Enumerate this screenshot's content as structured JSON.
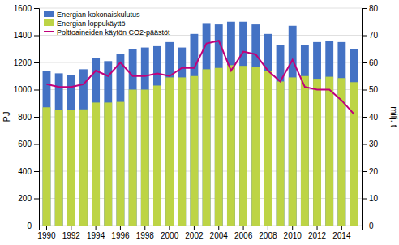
{
  "chart_data": {
    "type": "bar",
    "categories": [
      "1990",
      null,
      "1992",
      null,
      "1994",
      null,
      "1996",
      null,
      "1998",
      null,
      "2000",
      null,
      "2002",
      null,
      "2004",
      null,
      "2006",
      null,
      "2008",
      null,
      "2010",
      null,
      "2012",
      null,
      "2014",
      null
    ],
    "series": [
      {
        "name": "Energian kokonaiskulutus",
        "type": "bar",
        "color": "#4472c4",
        "values": [
          1140,
          1120,
          1110,
          1150,
          1230,
          1210,
          1260,
          1300,
          1310,
          1320,
          1350,
          1310,
          1410,
          1490,
          1480,
          1500,
          1500,
          1480,
          1410,
          1330,
          1470,
          1330,
          1350,
          1360,
          1350,
          1300
        ]
      },
      {
        "name": "Energian loppukäyttö",
        "type": "bar",
        "color": "#bdd445",
        "values": [
          870,
          850,
          850,
          855,
          905,
          905,
          910,
          1000,
          1000,
          1030,
          1090,
          1090,
          1100,
          1150,
          1160,
          1180,
          1175,
          1165,
          1140,
          1060,
          1090,
          1100,
          1080,
          1095,
          1085,
          1055
        ]
      },
      {
        "name": "Polttoaineiden käytön CO2-päästöt",
        "type": "line",
        "axis": "y2",
        "color": "#c0007a",
        "values": [
          52,
          51,
          51,
          52,
          57,
          55,
          60,
          55,
          55,
          56,
          55,
          58,
          58,
          67,
          68,
          57,
          64,
          63,
          57,
          53,
          61,
          51,
          50,
          50,
          46,
          41
        ]
      }
    ],
    "y_label": "PJ",
    "y2_label": "milj. t",
    "ylim": [
      0,
      1600
    ],
    "yticks": [
      0,
      200,
      400,
      600,
      800,
      1000,
      1200,
      1400,
      1600
    ],
    "y2lim": [
      0,
      80
    ],
    "y2ticks": [
      0,
      10,
      20,
      30,
      40,
      50,
      60,
      70,
      80
    ],
    "stacked": false,
    "grid": true,
    "legend": "upper left"
  }
}
